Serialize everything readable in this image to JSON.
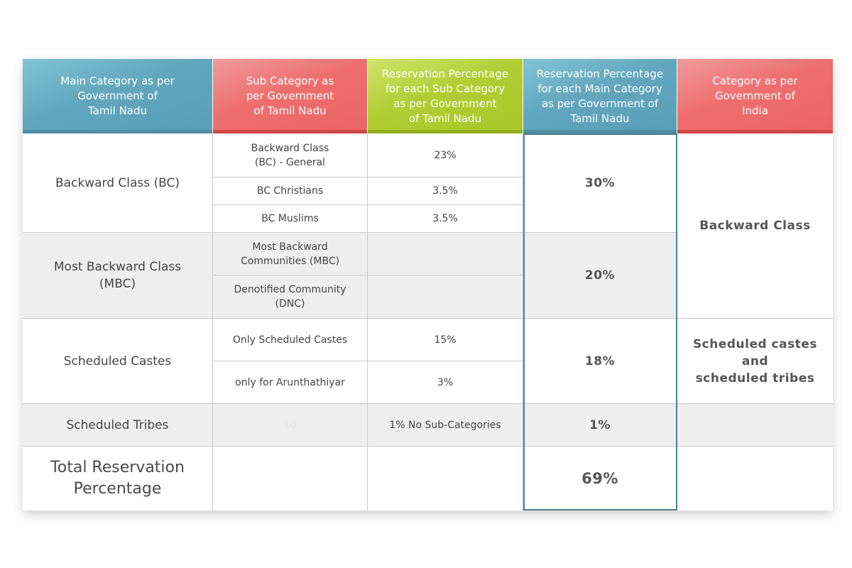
{
  "headers": [
    "Main Category as per\nGovernment of\nTamil Nadu",
    "Sub Category as\nper Government\nof Tamil Nadu",
    "Reservation Percentage\nfor each Sub Category\nas per Government\nof Tamil Nadu",
    "Reservation Percentage\nfor each Main Category\nas per Government of\nTamil Nadu",
    "Category as per\nGovernment of\nIndia"
  ],
  "rows": {
    "bc": {
      "main": "Backward Class (BC)",
      "subs": [
        {
          "name": "Backward Class\n(BC) - General",
          "pct": "23%"
        },
        {
          "name": "BC Christians",
          "pct": "3.5%"
        },
        {
          "name": "BC Muslims",
          "pct": "3.5%"
        }
      ],
      "main_pct": "30%"
    },
    "mbc": {
      "main": "Most Backward Class\n(MBC)",
      "subs": [
        {
          "name": "Most Backward\nCommunities (MBC)",
          "pct": ""
        },
        {
          "name": "Denotified Community\n(DNC)",
          "pct": ""
        }
      ],
      "main_pct": "20%"
    },
    "sc": {
      "main": "Scheduled Castes",
      "subs": [
        {
          "name": "Only Scheduled Castes",
          "pct": "15%"
        },
        {
          "name": "only for Arunthathiyar",
          "pct": "3%"
        }
      ],
      "main_pct": "18%"
    },
    "st": {
      "main": "Scheduled Tribes",
      "sub_ghost": "10",
      "sub_pct": "1% No Sub-Categories",
      "main_pct": "1%"
    },
    "total": {
      "label": "Total Reservation\nPercentage",
      "main_pct": "69%"
    }
  },
  "india_categories": {
    "backward": "Backward Class",
    "scst": "Scheduled castes\nand\nscheduled tribes"
  },
  "colors": {
    "header_blue": "#62a6bd",
    "header_red": "#ee6e6e",
    "header_green": "#b1cd33",
    "row_grey": "#eeeeee",
    "emphasis_border": "#4b7f90"
  }
}
